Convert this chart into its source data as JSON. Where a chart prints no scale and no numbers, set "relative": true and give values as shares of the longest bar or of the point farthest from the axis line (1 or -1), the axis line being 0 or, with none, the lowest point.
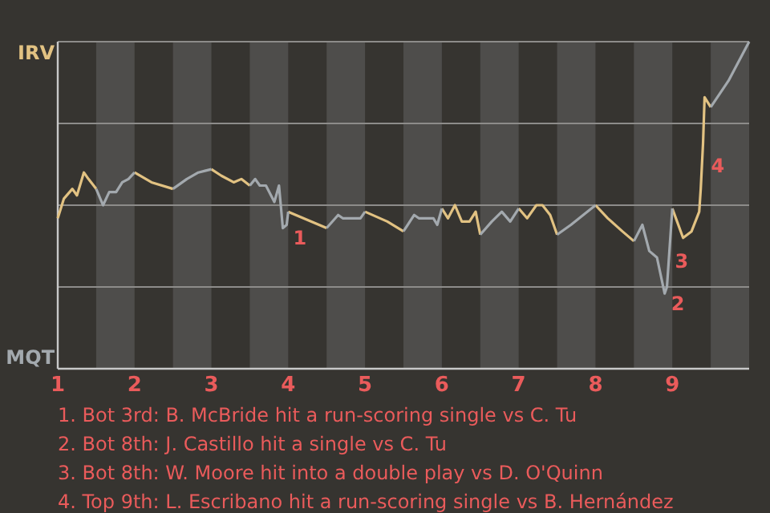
{
  "chart_data": {
    "type": "line",
    "relative": true,
    "xlim": [
      1,
      10
    ],
    "xticks": [
      1,
      2,
      3,
      4,
      5,
      6,
      7,
      8,
      9
    ],
    "grid": "y",
    "legend": false,
    "marker": "none",
    "line_style": "solid",
    "bands": [
      {
        "axis": "x",
        "from": 1.5,
        "to": 2,
        "color": "#4e4d4b"
      },
      {
        "axis": "x",
        "from": 2.5,
        "to": 3,
        "color": "#4e4d4b"
      },
      {
        "axis": "x",
        "from": 3.5,
        "to": 4,
        "color": "#4e4d4b"
      },
      {
        "axis": "x",
        "from": 4.5,
        "to": 5,
        "color": "#4e4d4b"
      },
      {
        "axis": "x",
        "from": 5.5,
        "to": 6,
        "color": "#4e4d4b"
      },
      {
        "axis": "x",
        "from": 6.5,
        "to": 7,
        "color": "#4e4d4b"
      },
      {
        "axis": "x",
        "from": 7.5,
        "to": 8,
        "color": "#4e4d4b"
      },
      {
        "axis": "x",
        "from": 8.5,
        "to": 9,
        "color": "#4e4d4b"
      },
      {
        "axis": "x",
        "from": 9.5,
        "to": 10,
        "color": "#4e4d4b"
      }
    ],
    "series": [
      {
        "name": "IRV",
        "color": "#e2c282",
        "x": [
          1,
          1.08,
          1.19,
          1.25,
          1.34,
          1.4,
          1.5,
          null,
          2,
          2.22,
          2.5,
          null,
          3,
          3.13,
          3.29,
          3.39,
          3.5,
          null,
          4,
          4.5,
          null,
          5,
          5.29,
          5.5,
          null,
          6,
          6.08,
          6.17,
          6.26,
          6.36,
          6.44,
          6.5,
          null,
          7,
          7.11,
          7.23,
          7.31,
          7.41,
          7.5,
          null,
          8,
          8.16,
          8.35,
          8.5,
          null,
          9,
          9.14,
          9.25,
          9.35,
          9.37,
          9.4,
          9.42,
          9.5
        ],
        "values": [
          0.46,
          0.52,
          0.55,
          0.53,
          0.6,
          0.58,
          0.55,
          null,
          0.6,
          0.57,
          0.55,
          null,
          0.61,
          0.59,
          0.57,
          0.58,
          0.56,
          null,
          0.48,
          0.43,
          null,
          0.48,
          0.45,
          0.42,
          null,
          0.49,
          0.46,
          0.5,
          0.45,
          0.45,
          0.48,
          0.41,
          null,
          0.49,
          0.46,
          0.5,
          0.5,
          0.47,
          0.41,
          null,
          0.5,
          0.46,
          0.42,
          0.39,
          null,
          0.49,
          0.4,
          0.42,
          0.48,
          0.55,
          0.69,
          0.83,
          0.8
        ]
      },
      {
        "name": "MQT",
        "color": "#a3a9ae",
        "x": [
          1.5,
          1.59,
          1.67,
          1.76,
          1.84,
          1.92,
          2,
          null,
          2.5,
          2.68,
          2.83,
          3,
          null,
          3.5,
          3.57,
          3.63,
          3.71,
          3.82,
          3.88,
          3.93,
          3.98,
          4,
          null,
          4.5,
          4.65,
          4.71,
          4.94,
          5,
          null,
          5.5,
          5.64,
          5.7,
          5.89,
          5.94,
          6,
          null,
          6.5,
          6.65,
          6.78,
          6.89,
          7,
          null,
          7.5,
          7.68,
          8,
          null,
          8.5,
          8.61,
          8.7,
          8.8,
          8.9,
          8.93,
          9,
          null,
          9.5,
          9.73,
          10
        ],
        "values": [
          0.55,
          0.5,
          0.54,
          0.54,
          0.57,
          0.58,
          0.6,
          null,
          0.55,
          0.58,
          0.6,
          0.61,
          null,
          0.56,
          0.58,
          0.56,
          0.56,
          0.51,
          0.56,
          0.43,
          0.44,
          0.48,
          null,
          0.43,
          0.47,
          0.46,
          0.46,
          0.48,
          null,
          0.42,
          0.47,
          0.46,
          0.46,
          0.44,
          0.49,
          null,
          0.41,
          0.45,
          0.48,
          0.45,
          0.49,
          null,
          0.41,
          0.44,
          0.5,
          null,
          0.39,
          0.44,
          0.36,
          0.34,
          0.23,
          0.25,
          0.49,
          null,
          0.8,
          0.88,
          1
        ]
      }
    ],
    "annotations": [
      {
        "text": "1",
        "x": 3.98,
        "y": 0.4
      },
      {
        "text": "2",
        "x": 8.9,
        "y": 0.2
      },
      {
        "text": "3",
        "x": 8.95,
        "y": 0.33
      },
      {
        "text": "4",
        "x": 9.42,
        "y": 0.62
      },
      "1. Bot 3rd: B. McBride hit a run-scoring single vs C. Tu",
      "2. Bot 8th: J. Castillo hit a single vs C. Tu",
      "3. Bot 8th: W. Moore hit into a double play vs D. O'Quinn",
      "4. Top 9th: L. Escribano hit a run-scoring single vs B. Hernández"
    ]
  }
}
